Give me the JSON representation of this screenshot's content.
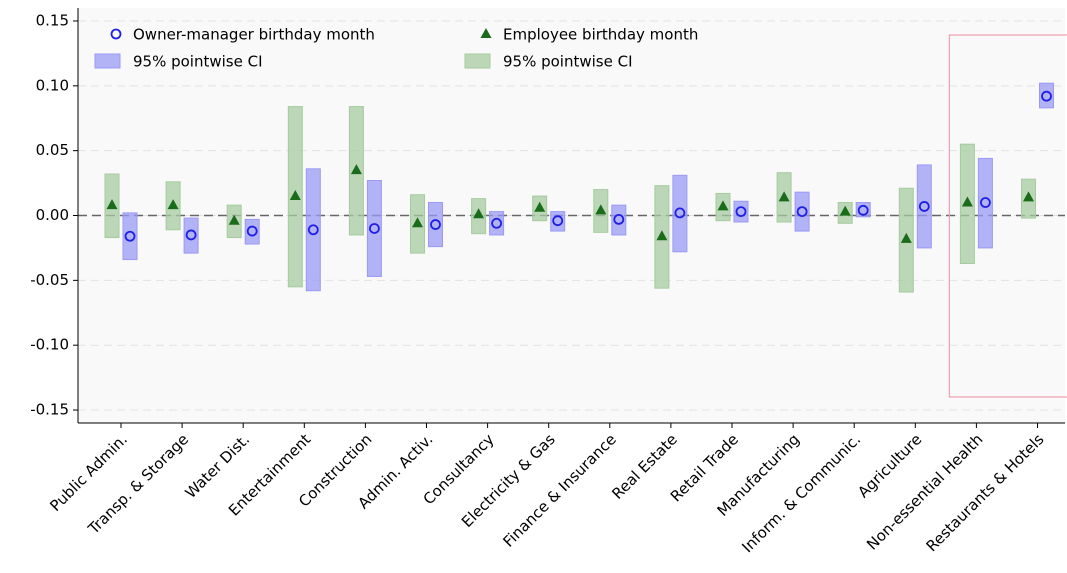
{
  "chart_data": {
    "type": "point-ci",
    "categories": [
      "Public Admin.",
      "Transp. & Storage",
      "Water Dist.",
      "Entertainment",
      "Construction",
      "Admin. Activ.",
      "Consultancy",
      "Electricity & Gas",
      "Finance & Insurance",
      "Real Estate",
      "Retail Trade",
      "Manufacturing",
      "Inform. & Communic.",
      "Agriculture",
      "Non-essential Health",
      "Restaurants & Hotels"
    ],
    "series": [
      {
        "name": "Owner-manager birthday month",
        "marker": "circle",
        "color": "#1f1fe6",
        "ci_color": "#9a9af5",
        "ci_label": "95% pointwise CI",
        "values": [
          -0.016,
          -0.015,
          -0.012,
          -0.011,
          -0.01,
          -0.007,
          -0.006,
          -0.004,
          -0.003,
          0.002,
          0.003,
          0.003,
          0.004,
          0.007,
          0.01,
          0.092
        ],
        "ci_low": [
          -0.034,
          -0.029,
          -0.022,
          -0.058,
          -0.047,
          -0.024,
          -0.015,
          -0.012,
          -0.015,
          -0.028,
          -0.005,
          -0.012,
          -0.001,
          -0.025,
          -0.025,
          0.083
        ],
        "ci_high": [
          0.002,
          -0.002,
          -0.003,
          0.036,
          0.027,
          0.01,
          0.003,
          0.003,
          0.008,
          0.031,
          0.011,
          0.018,
          0.01,
          0.039,
          0.044,
          0.102
        ]
      },
      {
        "name": "Employee birthday month",
        "marker": "triangle",
        "color": "#1a6b1a",
        "ci_color": "#a6cba0",
        "ci_label": "95% pointwise CI",
        "values": [
          0.008,
          0.008,
          -0.004,
          0.015,
          0.035,
          -0.006,
          0.001,
          0.006,
          0.004,
          -0.016,
          0.007,
          0.014,
          0.003,
          -0.018,
          0.01,
          0.014
        ],
        "ci_low": [
          -0.017,
          -0.011,
          -0.017,
          -0.055,
          -0.015,
          -0.029,
          -0.014,
          -0.004,
          -0.013,
          -0.056,
          -0.004,
          -0.005,
          -0.006,
          -0.059,
          -0.037,
          -0.002
        ],
        "ci_high": [
          0.032,
          0.026,
          0.008,
          0.084,
          0.084,
          0.016,
          0.013,
          0.015,
          0.02,
          0.023,
          0.017,
          0.033,
          0.01,
          0.021,
          0.055,
          0.028
        ]
      }
    ],
    "ylim": [
      -0.16,
      0.16
    ],
    "yticks": [
      {
        "value": -0.15,
        "label": "-0.15"
      },
      {
        "value": -0.1,
        "label": "-0.10"
      },
      -0.05,
      {
        "value": 0,
        "label": "0.00"
      },
      0.05,
      {
        "value": 0.1,
        "label": "0.10"
      },
      0.15
    ],
    "reference_line": 0,
    "grid": true
  }
}
